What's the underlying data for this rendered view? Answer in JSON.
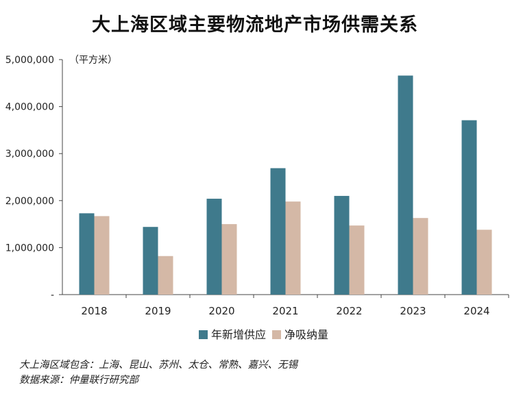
{
  "title": "大上海区域主要物流地产市场供需关系",
  "chart_data": {
    "type": "bar",
    "unit_label": "（平方米）",
    "categories": [
      "2018",
      "2019",
      "2020",
      "2021",
      "2022",
      "2023",
      "2024"
    ],
    "series": [
      {
        "name": "年新增供应",
        "color": "#3f7a8c",
        "values": [
          1730000,
          1440000,
          2040000,
          2690000,
          2100000,
          4660000,
          3710000
        ]
      },
      {
        "name": "净吸纳量",
        "color": "#d4b8a6",
        "values": [
          1670000,
          820000,
          1500000,
          1980000,
          1470000,
          1630000,
          1380000
        ]
      }
    ],
    "ylim": [
      0,
      5000000
    ],
    "yticks": [
      {
        "value": 0,
        "label": "-"
      },
      {
        "value": 1000000,
        "label": "1,000,000"
      },
      {
        "value": 2000000,
        "label": "2,000,000"
      },
      {
        "value": 3000000,
        "label": "3,000,000"
      },
      {
        "value": 4000000,
        "label": "4,000,000"
      },
      {
        "value": 5000000,
        "label": "5,000,000"
      }
    ],
    "grid": false,
    "legend_position": "bottom-center"
  },
  "notes": {
    "region": "大上海区域包含：上海、昆山、苏州、太仓、常熟、嘉兴、无锡",
    "source": "数据来源：仲量联行研究部"
  }
}
